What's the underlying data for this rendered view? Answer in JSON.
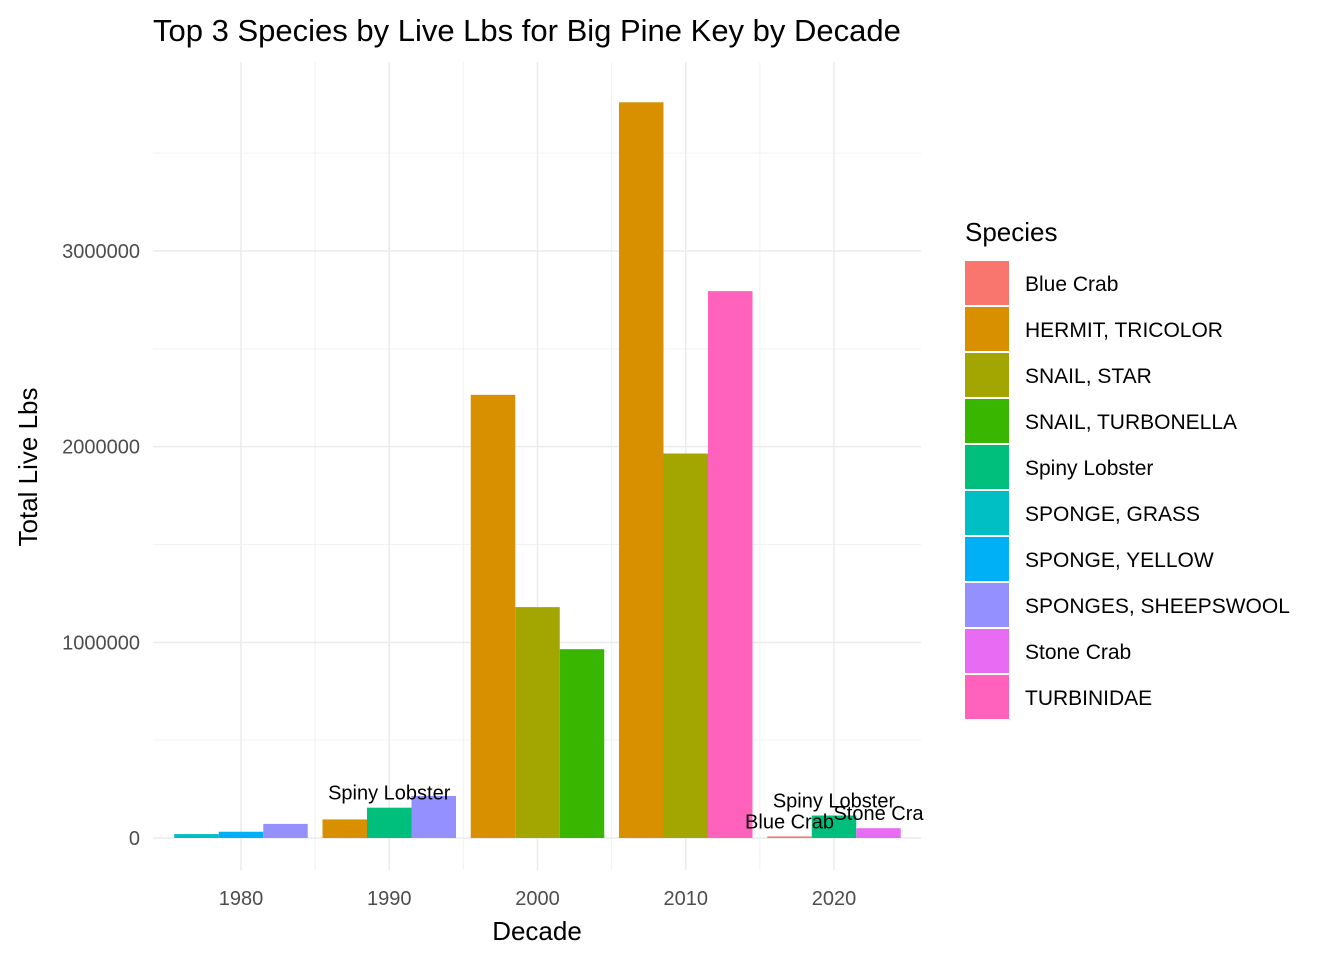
{
  "chart_data": {
    "type": "bar",
    "title": "Top 3 Species by Live Lbs for Big Pine Key by Decade",
    "xlabel": "Decade",
    "ylabel": "Total Live Lbs",
    "categories": [
      "1980",
      "1990",
      "2000",
      "2010",
      "2020"
    ],
    "ylim": [
      -160000,
      3950000
    ],
    "yticks": [
      0,
      1000000,
      2000000,
      3000000
    ],
    "ytick_labels": [
      "0",
      "1000000",
      "2000000",
      "3000000"
    ],
    "grid": true,
    "legend": {
      "title": "Species",
      "position": "right",
      "entries": [
        {
          "name": "Blue Crab",
          "color": "#F8766D"
        },
        {
          "name": "HERMIT, TRICOLOR",
          "color": "#D89000"
        },
        {
          "name": "SNAIL, STAR",
          "color": "#A3A500"
        },
        {
          "name": "SNAIL, TURBONELLA",
          "color": "#39B600"
        },
        {
          "name": "Spiny Lobster",
          "color": "#00BF7D"
        },
        {
          "name": "SPONGE, GRASS",
          "color": "#00BFC4"
        },
        {
          "name": "SPONGE, YELLOW",
          "color": "#00B0F6"
        },
        {
          "name": "SPONGES, SHEEPSWOOL",
          "color": "#9590FF"
        },
        {
          "name": "Stone Crab",
          "color": "#E76BF3"
        },
        {
          "name": "TURBINIDAE",
          "color": "#FF62BC"
        }
      ]
    },
    "groups": [
      {
        "decade": "1980",
        "bars": [
          {
            "species": "SPONGE, GRASS",
            "value": 20000
          },
          {
            "species": "SPONGE, YELLOW",
            "value": 32000
          },
          {
            "species": "SPONGES, SHEEPSWOOL",
            "value": 72000
          }
        ]
      },
      {
        "decade": "1990",
        "bars": [
          {
            "species": "HERMIT, TRICOLOR",
            "value": 95000
          },
          {
            "species": "Spiny Lobster",
            "value": 155000
          },
          {
            "species": "SPONGES, SHEEPSWOOL",
            "value": 215000
          }
        ]
      },
      {
        "decade": "2000",
        "bars": [
          {
            "species": "HERMIT, TRICOLOR",
            "value": 2265000
          },
          {
            "species": "SNAIL, STAR",
            "value": 1180000
          },
          {
            "species": "SNAIL, TURBONELLA",
            "value": 965000
          }
        ]
      },
      {
        "decade": "2010",
        "bars": [
          {
            "species": "HERMIT, TRICOLOR",
            "value": 3760000
          },
          {
            "species": "SNAIL, STAR",
            "value": 1965000
          },
          {
            "species": "TURBINIDAE",
            "value": 2795000
          }
        ]
      },
      {
        "decade": "2020",
        "bars": [
          {
            "species": "Blue Crab",
            "value": 8000
          },
          {
            "species": "Spiny Lobster",
            "value": 115000
          },
          {
            "species": "Stone Crab",
            "value": 50000
          }
        ]
      }
    ],
    "annotations": [
      {
        "text": "Spiny Lobster",
        "decade": "1990",
        "bar_index": 1
      },
      {
        "text": "Blue Crab",
        "decade": "2020",
        "bar_index": 0
      },
      {
        "text": "Spiny Lobster",
        "decade": "2020",
        "bar_index": 1
      },
      {
        "text": "Stone Cra",
        "decade": "2020",
        "bar_index": 2
      }
    ]
  }
}
